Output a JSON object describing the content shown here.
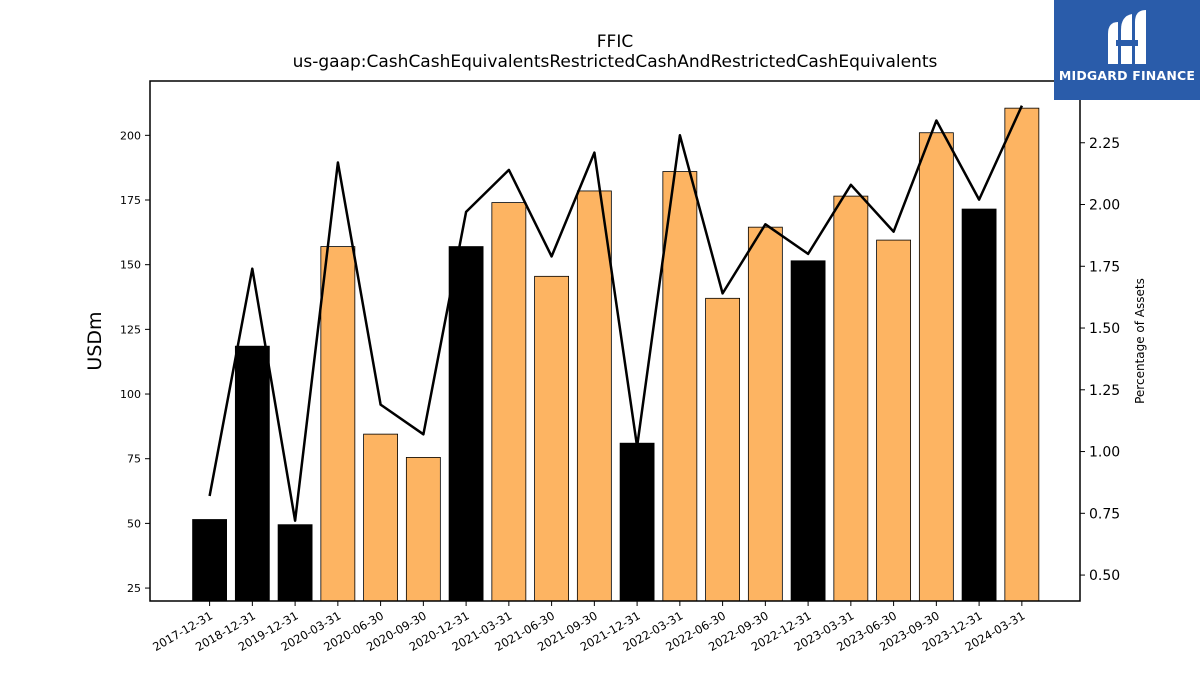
{
  "chart_data": {
    "type": "bar",
    "title": "FFIC",
    "subtitle": "us-gaap:CashCashEquivalentsRestrictedCashAndRestrictedCashEquivalents",
    "ylabel": "USDm",
    "y2label": "Percentage of Assets",
    "ylim": [
      20,
      221
    ],
    "y2lim": [
      0.395,
      2.5
    ],
    "yticks": [
      25,
      50,
      75,
      100,
      125,
      150,
      175,
      200
    ],
    "y2ticks": [
      "0.50",
      "0.75",
      "1.00",
      "1.25",
      "1.50",
      "1.75",
      "2.00",
      "2.25"
    ],
    "categories": [
      "2017-12-31",
      "2018-12-31",
      "2019-12-31",
      "2020-03-31",
      "2020-06-30",
      "2020-09-30",
      "2020-12-31",
      "2021-03-31",
      "2021-06-30",
      "2021-09-30",
      "2021-12-31",
      "2022-03-31",
      "2022-06-30",
      "2022-09-30",
      "2022-12-31",
      "2023-03-31",
      "2023-06-30",
      "2023-09-30",
      "2023-12-31",
      "2024-03-31"
    ],
    "series": [
      {
        "values": [
          51.5,
          118.5,
          49.5,
          157,
          84.5,
          75.5,
          157,
          174,
          145.5,
          178.5,
          81,
          186,
          137,
          164.5,
          151.5,
          176.5,
          159.5,
          201,
          171.5,
          210.5
        ],
        "colors": [
          "#000000",
          "#000000",
          "#000000",
          "#fdb462",
          "#fdb462",
          "#fdb462",
          "#000000",
          "#fdb462",
          "#fdb462",
          "#fdb462",
          "#000000",
          "#fdb462",
          "#fdb462",
          "#fdb462",
          "#000000",
          "#fdb462",
          "#fdb462",
          "#fdb462",
          "#000000",
          "#fdb462"
        ]
      },
      {
        "axis": "right",
        "type": "line",
        "values": [
          0.82,
          1.74,
          0.72,
          2.17,
          1.19,
          1.07,
          1.97,
          2.14,
          1.79,
          2.21,
          1.02,
          2.28,
          1.64,
          1.92,
          1.8,
          2.08,
          1.89,
          2.34,
          2.02,
          2.4
        ]
      }
    ],
    "colors": {
      "annual": "#000000",
      "quarterly": "#fdb462",
      "line": "#000000"
    },
    "grid": false
  },
  "logo": {
    "text": "MIDGARD FINANCE",
    "background": "#2a5caa"
  }
}
